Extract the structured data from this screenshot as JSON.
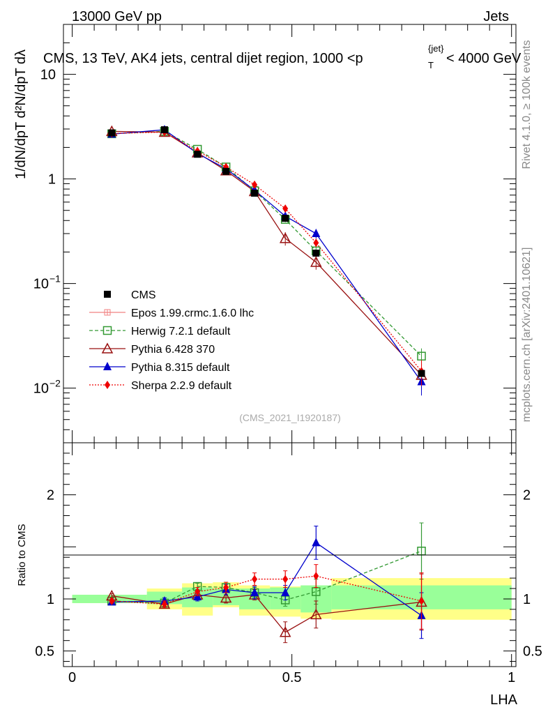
{
  "header": {
    "energy": "13000 GeV pp",
    "group": "Jets",
    "rivet": "Rivet 4.1.0, ≥ 100k events",
    "site": "mcplots.cern.ch [arXiv:2401.10621]"
  },
  "chart_data": {
    "type": "line",
    "title": "CMS, 13 TeV, AK4 jets, central dijet region, 1000 < p_T^{jet} < 4000 GeV",
    "title_main": "CMS, 13 TeV, AK4 jets, central dijet region, 1000 <p",
    "title_sup": "{jet}",
    "title_sub": "T",
    "title_tail": "< 4000 GeV",
    "analysis": "(CMS_2021_I1920187)",
    "xlabel": "LHA",
    "ylabel": "1/dN/dpT  d²N/dpT dλ",
    "ratio_ylabel": "Ratio to CMS",
    "xlim": [
      -0.02,
      1.01
    ],
    "ylim": [
      0.003,
      30
    ],
    "ratio_ylim": [
      0.35,
      2.5
    ],
    "log_y": true,
    "x_ticks": [
      "0",
      "0.5",
      "1"
    ],
    "y_ticks": [
      "10^-2",
      "10^-1",
      "1",
      "10"
    ],
    "ratio_ticks": [
      "0.5",
      "1",
      "2"
    ],
    "x": [
      0.09,
      0.21,
      0.285,
      0.35,
      0.415,
      0.485,
      0.555,
      0.795
    ],
    "bin_edges": [
      0,
      0.17,
      0.25,
      0.32,
      0.38,
      0.45,
      0.52,
      0.59,
      1.0
    ],
    "series": [
      {
        "name": "CMS",
        "color": "#000000",
        "marker": "square-filled",
        "line": "none",
        "values": [
          2.75,
          2.95,
          1.72,
          1.18,
          0.73,
          0.42,
          0.195,
          0.0138
        ]
      },
      {
        "name": "Epos 1.99.crmc.1.6.0 lhc",
        "color": "#f08080",
        "marker": "plus-box",
        "line": "solid",
        "values": [
          null,
          null,
          null,
          null,
          null,
          null,
          null,
          null
        ]
      },
      {
        "name": "Herwig 7.2.1 default",
        "color": "#339933",
        "marker": "square-open",
        "line": "dashed",
        "values": [
          2.7,
          2.85,
          1.92,
          1.3,
          0.77,
          0.41,
          0.205,
          0.0202
        ],
        "ratio": [
          0.98,
          0.96,
          1.12,
          1.11,
          1.06,
          0.99,
          1.07,
          1.46
        ],
        "ratio_err": [
          0.02,
          0.03,
          0.03,
          0.05,
          0.05,
          0.06,
          0.12,
          0.27
        ]
      },
      {
        "name": "Pythia 6.428 370",
        "color": "#991111",
        "marker": "triangle-open",
        "line": "solid",
        "values": [
          2.85,
          2.8,
          1.78,
          1.2,
          0.76,
          0.27,
          0.16,
          0.0133
        ],
        "ratio": [
          1.03,
          0.95,
          1.04,
          1.01,
          1.04,
          0.68,
          0.85,
          0.97
        ],
        "ratio_err": [
          0.02,
          0.02,
          0.04,
          0.05,
          0.05,
          0.1,
          0.13,
          0.27
        ]
      },
      {
        "name": "Pythia 8.315 default",
        "color": "#0000cc",
        "marker": "triangle-filled",
        "line": "solid",
        "values": [
          2.68,
          2.95,
          1.75,
          1.25,
          0.78,
          0.44,
          0.3,
          0.0115
        ],
        "ratio": [
          0.97,
          0.98,
          1.02,
          1.09,
          1.06,
          1.06,
          1.54,
          0.84
        ],
        "ratio_err": [
          0.02,
          0.03,
          0.04,
          0.05,
          0.06,
          0.07,
          0.16,
          0.22
        ]
      },
      {
        "name": "Sherpa 2.2.9 default",
        "color": "#ee0000",
        "marker": "diamond-filled",
        "line": "dotted",
        "values": [
          2.72,
          2.8,
          1.85,
          1.3,
          0.88,
          0.52,
          0.245,
          0.0145
        ],
        "ratio": [
          0.98,
          0.95,
          1.07,
          1.11,
          1.19,
          1.19,
          1.22,
          0.98
        ],
        "ratio_err": [
          0.02,
          0.03,
          0.04,
          0.05,
          0.06,
          0.08,
          0.11,
          0.27
        ]
      }
    ],
    "uncertainty_bands": {
      "stat_green": [
        [
          0.96,
          1.04
        ],
        [
          0.95,
          1.07
        ],
        [
          0.92,
          1.11
        ],
        [
          0.94,
          1.1
        ],
        [
          0.9,
          1.1
        ],
        [
          0.9,
          1.11
        ],
        [
          0.87,
          1.13
        ],
        [
          0.9,
          1.13
        ]
      ],
      "total_yellow": [
        [
          0.96,
          1.04
        ],
        [
          0.9,
          1.1
        ],
        [
          0.84,
          1.15
        ],
        [
          0.92,
          1.16
        ],
        [
          0.84,
          1.13
        ],
        [
          0.83,
          1.12
        ],
        [
          0.81,
          1.13
        ],
        [
          0.8,
          1.2
        ]
      ]
    },
    "legend_position": "lower-left"
  }
}
